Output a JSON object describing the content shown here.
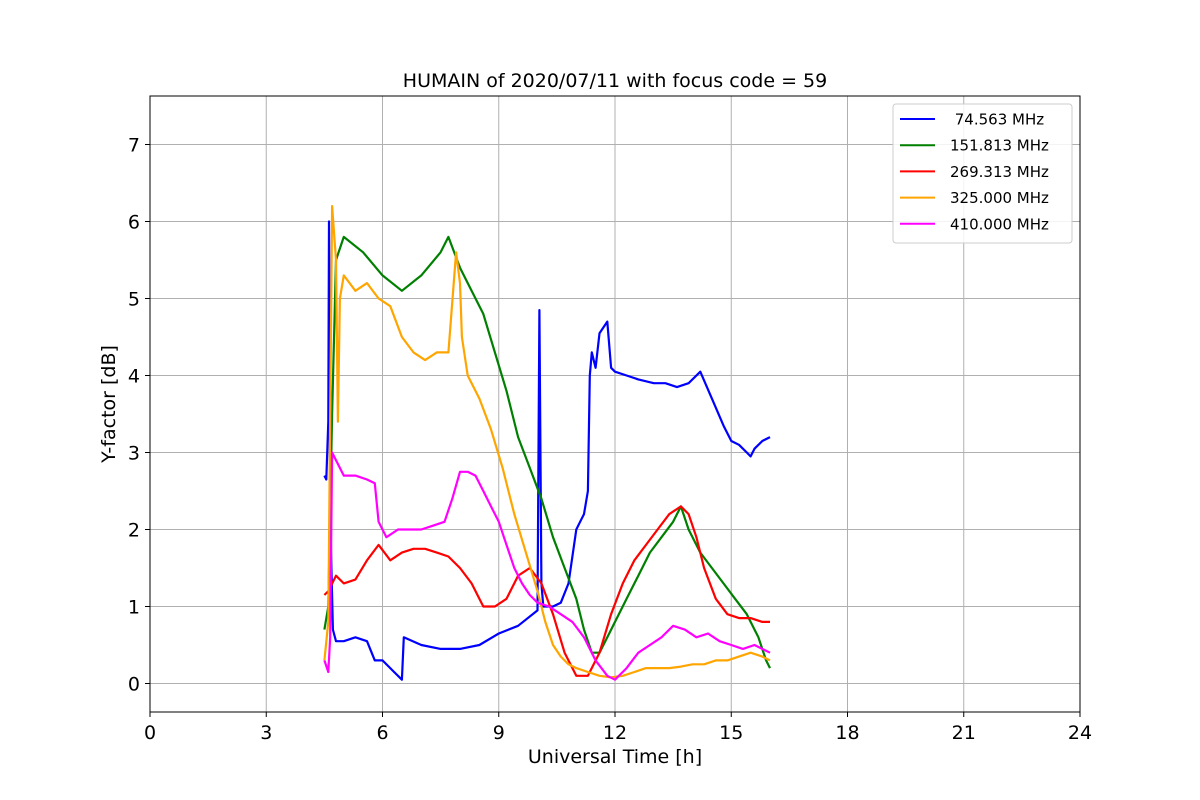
{
  "chart_data": {
    "type": "line",
    "title": "HUMAIN of 2020/07/11 with focus code = 59",
    "xlabel": "Universal Time [h]",
    "ylabel": "Y-factor [dB]",
    "xlim": [
      0,
      24
    ],
    "ylim": [
      -0.37,
      7.63
    ],
    "xticks": [
      0,
      3,
      6,
      9,
      12,
      15,
      18,
      21,
      24
    ],
    "yticks": [
      0,
      1,
      2,
      3,
      4,
      5,
      6,
      7
    ],
    "grid": true,
    "legend_position": "top-right",
    "series": [
      {
        "name": " 74.563 MHz",
        "color": "#0000ff",
        "x": [
          4.5,
          4.55,
          4.6,
          4.62,
          4.65,
          4.68,
          4.72,
          4.8,
          5.0,
          5.3,
          5.6,
          5.8,
          6.0,
          6.3,
          6.5,
          6.55,
          7.0,
          7.5,
          8.0,
          8.5,
          9.0,
          9.5,
          10.0,
          10.05,
          10.1,
          10.15,
          10.2,
          10.4,
          10.6,
          10.8,
          11.0,
          11.1,
          11.2,
          11.3,
          11.35,
          11.4,
          11.5,
          11.6,
          11.8,
          11.9,
          12.0,
          12.3,
          12.6,
          13.0,
          13.3,
          13.6,
          13.9,
          14.2,
          14.5,
          14.8,
          15.0,
          15.2,
          15.4,
          15.5,
          15.6,
          15.8,
          16.0
        ],
        "y": [
          2.7,
          2.65,
          3.4,
          6.0,
          2.3,
          1.5,
          0.7,
          0.55,
          0.55,
          0.6,
          0.55,
          0.3,
          0.3,
          0.15,
          0.05,
          0.6,
          0.5,
          0.45,
          0.45,
          0.5,
          0.65,
          0.75,
          0.95,
          4.85,
          1.3,
          1.0,
          1.0,
          1.0,
          1.05,
          1.3,
          2.0,
          2.1,
          2.2,
          2.5,
          4.0,
          4.3,
          4.1,
          4.55,
          4.7,
          4.1,
          4.05,
          4.0,
          3.95,
          3.9,
          3.9,
          3.85,
          3.9,
          4.05,
          3.7,
          3.35,
          3.15,
          3.1,
          3.0,
          2.95,
          3.05,
          3.15,
          3.2
        ]
      },
      {
        "name": "151.813 MHz",
        "color": "#008000",
        "x": [
          4.5,
          4.6,
          4.7,
          4.8,
          5.0,
          5.5,
          6.0,
          6.5,
          7.0,
          7.5,
          7.7,
          8.0,
          8.3,
          8.6,
          8.9,
          9.2,
          9.5,
          9.8,
          10.1,
          10.4,
          10.7,
          11.0,
          11.2,
          11.4,
          11.6,
          11.8,
          12.0,
          12.3,
          12.6,
          12.9,
          13.2,
          13.5,
          13.7,
          13.9,
          14.2,
          14.5,
          14.8,
          15.1,
          15.4,
          15.7,
          15.9,
          16.0
        ],
        "y": [
          0.7,
          1.0,
          3.5,
          5.5,
          5.8,
          5.6,
          5.3,
          5.1,
          5.3,
          5.6,
          5.8,
          5.4,
          5.1,
          4.8,
          4.3,
          3.8,
          3.2,
          2.8,
          2.4,
          1.9,
          1.5,
          1.1,
          0.7,
          0.4,
          0.4,
          0.6,
          0.8,
          1.1,
          1.4,
          1.7,
          1.9,
          2.1,
          2.3,
          2.0,
          1.7,
          1.5,
          1.3,
          1.1,
          0.9,
          0.6,
          0.3,
          0.2
        ]
      },
      {
        "name": "269.313 MHz",
        "color": "#ff0000",
        "x": [
          4.5,
          4.6,
          4.8,
          5.0,
          5.3,
          5.6,
          5.9,
          6.2,
          6.5,
          6.8,
          7.1,
          7.4,
          7.7,
          8.0,
          8.3,
          8.6,
          8.9,
          9.2,
          9.5,
          9.8,
          10.1,
          10.4,
          10.7,
          11.0,
          11.3,
          11.6,
          11.9,
          12.2,
          12.5,
          12.8,
          13.1,
          13.4,
          13.7,
          13.9,
          14.1,
          14.3,
          14.6,
          14.9,
          15.2,
          15.5,
          15.8,
          16.0
        ],
        "y": [
          1.15,
          1.2,
          1.4,
          1.3,
          1.35,
          1.6,
          1.8,
          1.6,
          1.7,
          1.75,
          1.75,
          1.7,
          1.65,
          1.5,
          1.3,
          1.0,
          1.0,
          1.1,
          1.4,
          1.5,
          1.3,
          0.9,
          0.4,
          0.1,
          0.1,
          0.4,
          0.9,
          1.3,
          1.6,
          1.8,
          2.0,
          2.2,
          2.3,
          2.2,
          1.9,
          1.5,
          1.1,
          0.9,
          0.85,
          0.85,
          0.8,
          0.8
        ]
      },
      {
        "name": "325.000 MHz",
        "color": "#ffa500",
        "x": [
          4.5,
          4.6,
          4.7,
          4.8,
          4.85,
          4.9,
          5.0,
          5.3,
          5.6,
          5.9,
          6.2,
          6.5,
          6.8,
          7.1,
          7.4,
          7.7,
          7.9,
          8.0,
          8.05,
          8.2,
          8.5,
          8.8,
          9.1,
          9.4,
          9.7,
          10.0,
          10.2,
          10.4,
          10.6,
          10.8,
          11.0,
          11.3,
          11.6,
          11.9,
          12.2,
          12.5,
          12.8,
          13.1,
          13.4,
          13.7,
          14.0,
          14.3,
          14.6,
          14.9,
          15.2,
          15.5,
          15.8,
          16.0
        ],
        "y": [
          0.3,
          0.8,
          6.2,
          5.5,
          3.4,
          5.0,
          5.3,
          5.1,
          5.2,
          5.0,
          4.9,
          4.5,
          4.3,
          4.2,
          4.3,
          4.3,
          5.6,
          5.2,
          4.5,
          4.0,
          3.7,
          3.3,
          2.8,
          2.2,
          1.7,
          1.2,
          0.8,
          0.5,
          0.35,
          0.25,
          0.2,
          0.15,
          0.1,
          0.08,
          0.1,
          0.15,
          0.2,
          0.2,
          0.2,
          0.22,
          0.25,
          0.25,
          0.3,
          0.3,
          0.35,
          0.4,
          0.35,
          0.3
        ]
      },
      {
        "name": "410.000 MHz",
        "color": "#ff00ff",
        "x": [
          4.5,
          4.6,
          4.65,
          4.7,
          4.8,
          5.0,
          5.3,
          5.6,
          5.8,
          5.9,
          6.1,
          6.4,
          6.7,
          7.0,
          7.3,
          7.6,
          7.8,
          8.0,
          8.2,
          8.4,
          8.6,
          8.8,
          9.0,
          9.2,
          9.4,
          9.6,
          9.8,
          10.0,
          10.3,
          10.6,
          10.9,
          11.2,
          11.5,
          11.8,
          12.0,
          12.3,
          12.6,
          12.9,
          13.2,
          13.5,
          13.8,
          14.1,
          14.4,
          14.7,
          15.0,
          15.3,
          15.6,
          15.8,
          16.0
        ],
        "y": [
          0.3,
          0.15,
          0.6,
          3.0,
          2.9,
          2.7,
          2.7,
          2.65,
          2.6,
          2.1,
          1.9,
          2.0,
          2.0,
          2.0,
          2.05,
          2.1,
          2.4,
          2.75,
          2.75,
          2.7,
          2.5,
          2.3,
          2.1,
          1.8,
          1.5,
          1.3,
          1.15,
          1.05,
          1.0,
          0.9,
          0.8,
          0.6,
          0.3,
          0.1,
          0.05,
          0.2,
          0.4,
          0.5,
          0.6,
          0.75,
          0.7,
          0.6,
          0.65,
          0.55,
          0.5,
          0.45,
          0.5,
          0.45,
          0.4
        ]
      }
    ]
  }
}
